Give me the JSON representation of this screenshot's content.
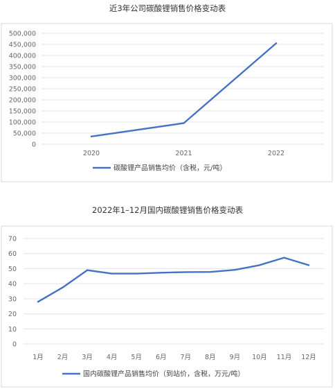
{
  "chart_data": [
    {
      "type": "line",
      "title": "近3年公司碳酸锂销售价格变动表",
      "categories": [
        "2020",
        "2021",
        "2022"
      ],
      "series": [
        {
          "name": "碳酸锂产品销售均价（含税，元/吨）",
          "values": [
            35000,
            95000,
            455000
          ]
        }
      ],
      "yticks": [
        "0",
        "50,000",
        "100,000",
        "150,000",
        "200,000",
        "250,000",
        "300,000",
        "350,000",
        "400,000",
        "450,000",
        "500,000"
      ],
      "ylim": [
        0,
        500000
      ],
      "grid": true,
      "legend": "bottom",
      "color": "#4472c4"
    },
    {
      "type": "line",
      "title": "2022年1–12月国内碳酸锂销售价格变动表",
      "categories": [
        "1月",
        "2月",
        "3月",
        "4月",
        "5月",
        "6月",
        "7月",
        "8月",
        "9月",
        "10月",
        "11月",
        "12月"
      ],
      "series": [
        {
          "name": "国内碳酸锂产品销售均价（到站价，含税，万元/吨）",
          "values": [
            28,
            37.5,
            49,
            46.7,
            46.7,
            47.3,
            47.7,
            47.8,
            49.2,
            52.3,
            57.3,
            52.3
          ]
        }
      ],
      "yticks": [
        "0",
        "10",
        "20",
        "30",
        "40",
        "50",
        "60",
        "70"
      ],
      "ylim": [
        0,
        70
      ],
      "grid": true,
      "legend": "bottom",
      "color": "#4472c4"
    }
  ]
}
